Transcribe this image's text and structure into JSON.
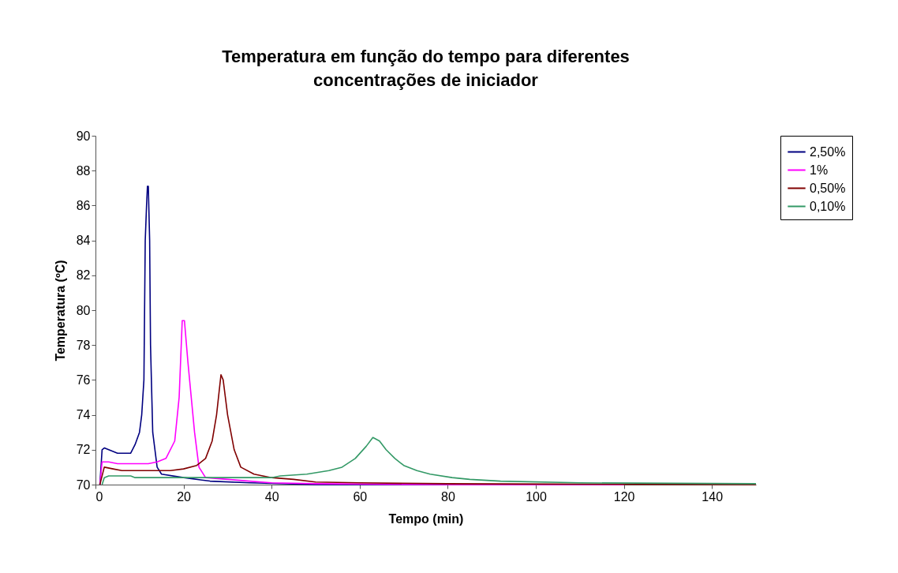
{
  "chart_data": {
    "type": "line",
    "title": "Temperatura em função do tempo para diferentes concentrações de iniciador",
    "xlabel": "Tempo (min)",
    "ylabel": "Temperatura (ºC)",
    "xlim": [
      0,
      150
    ],
    "xticks": [
      0,
      20,
      40,
      60,
      80,
      100,
      120,
      140
    ],
    "ylim": [
      70,
      90
    ],
    "yticks": [
      70,
      72,
      74,
      76,
      78,
      80,
      82,
      84,
      86,
      88,
      90
    ],
    "grid": false,
    "legend": "right",
    "marker": "none",
    "line_style": "solid",
    "series": [
      {
        "name": "2,50%",
        "color": "#000080",
        "x": [
          1,
          1.5,
          2,
          3,
          5,
          8,
          9,
          10,
          10.5,
          11,
          11.3,
          11.6,
          11.8,
          12,
          12.3,
          12.5,
          13,
          14,
          15,
          20,
          26,
          35,
          50,
          80
        ],
        "values": [
          70,
          72,
          72.1,
          72,
          71.8,
          71.8,
          72.3,
          73,
          74,
          76,
          84,
          86,
          87.1,
          87.1,
          84,
          78,
          73,
          71,
          70.6,
          70.4,
          70.2,
          70.1,
          70,
          70
        ]
      },
      {
        "name": "1%",
        "color": "#ff00ff",
        "x": [
          1,
          1.5,
          3,
          5,
          12,
          14,
          16,
          18,
          19,
          19.7,
          20.2,
          21,
          22.5,
          23.5,
          25,
          30,
          35,
          40,
          50,
          80,
          120
        ],
        "values": [
          70,
          71.3,
          71.3,
          71.2,
          71.2,
          71.3,
          71.5,
          72.5,
          75,
          79.4,
          79.4,
          77,
          73,
          71,
          70.4,
          70.3,
          70.2,
          70.1,
          70.05,
          70,
          70
        ]
      },
      {
        "name": "0,50%",
        "color": "#800000",
        "x": [
          1,
          2,
          4,
          6,
          17,
          20,
          23,
          25,
          26.5,
          27.5,
          28.5,
          29,
          30,
          31.5,
          33,
          36,
          40,
          45,
          50,
          60,
          80,
          150
        ],
        "values": [
          70,
          71,
          70.9,
          70.8,
          70.8,
          70.9,
          71.1,
          71.5,
          72.5,
          74,
          76.3,
          76,
          74,
          72,
          71,
          70.6,
          70.4,
          70.3,
          70.15,
          70.1,
          70.05,
          70
        ]
      },
      {
        "name": "0,10%",
        "color": "#339966",
        "x": [
          1.5,
          2,
          3,
          8,
          9,
          40,
          42,
          48,
          53,
          56,
          59,
          61.5,
          63,
          64.5,
          66,
          68,
          70,
          73,
          76,
          81,
          85,
          92,
          110,
          150
        ],
        "values": [
          70,
          70.4,
          70.5,
          70.5,
          70.4,
          70.4,
          70.5,
          70.6,
          70.8,
          71,
          71.5,
          72.2,
          72.7,
          72.5,
          72,
          71.5,
          71.1,
          70.8,
          70.6,
          70.4,
          70.3,
          70.2,
          70.1,
          70.05
        ]
      }
    ]
  }
}
